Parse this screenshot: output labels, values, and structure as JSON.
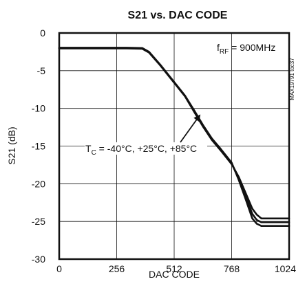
{
  "chart_data": {
    "type": "line",
    "title": "S21 vs. DAC CODE",
    "xlabel": "DAC CODE",
    "ylabel": "S21 (dB)",
    "xlim": [
      0,
      1024
    ],
    "ylim": [
      -30,
      0
    ],
    "xticks": [
      0,
      256,
      512,
      768,
      1024
    ],
    "yticks": [
      0,
      -5,
      -10,
      -15,
      -20,
      -25,
      -30
    ],
    "xtick_labels": [
      "0",
      "256",
      "512",
      "768",
      "1024"
    ],
    "ytick_labels": [
      "0",
      "-5",
      "-10",
      "-15",
      "-20",
      "-25",
      "-30"
    ],
    "grid": true,
    "legend": "none",
    "line_color": "#111111",
    "series": [
      {
        "x": [
          0,
          100,
          200,
          300,
          370,
          400,
          450,
          512,
          560,
          600,
          640,
          680,
          720,
          768,
          800,
          830,
          860,
          880,
          900,
          950,
          1024
        ],
        "y": [
          -2.05,
          -2.05,
          -2.05,
          -2.05,
          -2.1,
          -2.6,
          -4.3,
          -6.6,
          -8.4,
          -10.4,
          -12.4,
          -14.2,
          -15.6,
          -17.4,
          -19.1,
          -21.2,
          -23.3,
          -24.1,
          -24.6,
          -24.6,
          -24.6
        ]
      },
      {
        "x": [
          0,
          100,
          200,
          300,
          370,
          400,
          450,
          512,
          560,
          600,
          640,
          680,
          720,
          768,
          800,
          830,
          860,
          880,
          900,
          950,
          1024
        ],
        "y": [
          -2.0,
          -2.0,
          -2.0,
          -2.0,
          -2.05,
          -2.55,
          -4.25,
          -6.55,
          -8.35,
          -10.3,
          -12.3,
          -14.1,
          -15.5,
          -17.3,
          -19.3,
          -21.6,
          -24.0,
          -24.8,
          -25.1,
          -25.1,
          -25.1
        ]
      },
      {
        "x": [
          0,
          100,
          200,
          300,
          370,
          400,
          450,
          512,
          560,
          600,
          640,
          680,
          720,
          768,
          800,
          830,
          860,
          880,
          900,
          950,
          1024
        ],
        "y": [
          -1.95,
          -1.95,
          -1.95,
          -1.95,
          -2.0,
          -2.5,
          -4.2,
          -6.5,
          -8.3,
          -10.2,
          -12.2,
          -14.0,
          -15.4,
          -17.2,
          -19.5,
          -22.0,
          -24.6,
          -25.3,
          -25.6,
          -25.6,
          -25.6
        ]
      }
    ],
    "annotations": {
      "frequency": {
        "prefix": "f",
        "sub": "RF",
        "suffix": " = 900MHz"
      },
      "temperature": {
        "prefix": "T",
        "sub": "C",
        "suffix": " = -40°C, +25°C, +85°C",
        "arrow_target": [
          600,
          -10.5
        ]
      },
      "watermark": "MAX19791 toc37"
    }
  }
}
